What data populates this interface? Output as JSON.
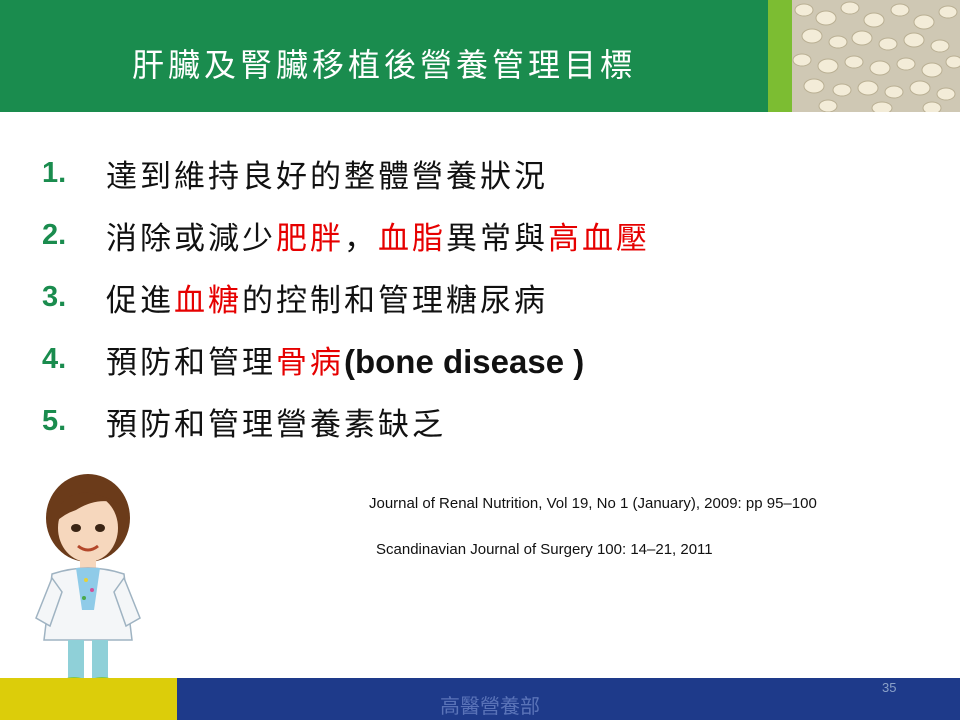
{
  "title": "肝臟及腎臟移植後營養管理目標",
  "goals": [
    {
      "num": "1.",
      "parts": [
        {
          "t": "達到維持良好的整體營養狀況",
          "c": "n"
        }
      ]
    },
    {
      "num": "2.",
      "parts": [
        {
          "t": "消除或減少",
          "c": "n"
        },
        {
          "t": "肥胖",
          "c": "r"
        },
        {
          "t": "，",
          "c": "n"
        },
        {
          "t": "血脂",
          "c": "r"
        },
        {
          "t": "異常與",
          "c": "n"
        },
        {
          "t": "高血壓",
          "c": "r"
        }
      ]
    },
    {
      "num": "3.",
      "parts": [
        {
          "t": "促進",
          "c": "n"
        },
        {
          "t": "血糖",
          "c": "r"
        },
        {
          "t": "的控制和管理糖尿病",
          "c": "n"
        }
      ]
    },
    {
      "num": "4.",
      "parts": [
        {
          "t": "預防和管理",
          "c": "n"
        },
        {
          "t": "骨病",
          "c": "r"
        },
        {
          "t": "(bone disease )",
          "c": "l"
        }
      ]
    },
    {
      "num": "5.",
      "parts": [
        {
          "t": "預防和管理營養素缺乏",
          "c": "n"
        }
      ]
    }
  ],
  "references": {
    "ref1": "Journal of Renal Nutrition, Vol 19, No 1 (January), 2009: pp 95–100",
    "ref2": "Scandinavian Journal of Surgery 100: 14–21, 2011"
  },
  "footer": {
    "department": "高醫營養部",
    "page_number": "35"
  },
  "colors": {
    "title_bar": "#1a8c4e",
    "accent_green": "#7cbd32",
    "number_green": "#1a8c4e",
    "highlight_red": "#e60000",
    "footer_blue": "#1e3a8a",
    "footer_yellow": "#dccd0a"
  },
  "icons": {
    "photo": "beans-photo",
    "illustration": "nurse-illustration"
  }
}
